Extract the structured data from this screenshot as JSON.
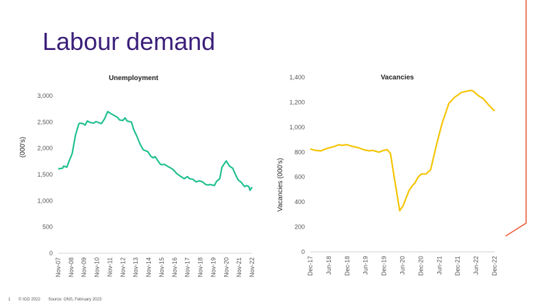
{
  "slide": {
    "title": "Labour demand",
    "page_number": "1",
    "copyright": "© IGD 2022",
    "source": "Source: ONS, February 2023",
    "accent_color": "#e8552a",
    "title_color": "#3b1f7a"
  },
  "chart_data": [
    {
      "type": "line",
      "title": "Unemployment",
      "xlabel": "",
      "ylabel": "(000's)",
      "x_unit": "months since Nov-07",
      "xlim": [
        0,
        180
      ],
      "ylim": [
        0,
        3000
      ],
      "yticks": [
        "0",
        "500",
        "1,000",
        "1,500",
        "2,000",
        "2,500",
        "3,000"
      ],
      "ytick_values": [
        0,
        500,
        1000,
        1500,
        2000,
        2500,
        3000
      ],
      "xtick_labels": [
        "Nov-07",
        "Nov-08",
        "Nov-09",
        "Nov-10",
        "Nov-11",
        "Nov-12",
        "Nov-13",
        "Nov-14",
        "Nov-15",
        "Nov-16",
        "Nov-17",
        "Nov-18",
        "Nov-19",
        "Nov-20",
        "Nov-21",
        "Nov-22"
      ],
      "color": "#1fbf8f",
      "x": [
        0,
        4,
        5,
        8,
        10,
        13,
        16,
        19,
        20,
        23,
        25,
        27,
        30,
        33,
        35,
        40,
        43,
        46,
        49,
        55,
        57,
        60,
        62,
        64,
        68,
        70,
        73,
        76,
        79,
        83,
        86,
        88,
        90,
        92,
        95,
        99,
        102,
        104,
        107,
        110,
        114,
        117,
        120,
        122,
        125,
        128,
        131,
        134,
        137,
        139,
        141,
        145,
        147,
        150,
        152,
        156,
        159,
        162,
        165,
        167,
        170,
        173,
        175,
        177,
        178,
        180
      ],
      "values": [
        1610,
        1620,
        1660,
        1640,
        1750,
        1900,
        2250,
        2460,
        2480,
        2470,
        2440,
        2520,
        2490,
        2480,
        2510,
        2470,
        2560,
        2700,
        2660,
        2590,
        2540,
        2530,
        2580,
        2520,
        2500,
        2360,
        2230,
        2080,
        1970,
        1940,
        1850,
        1820,
        1840,
        1780,
        1690,
        1690,
        1650,
        1630,
        1590,
        1520,
        1460,
        1420,
        1460,
        1420,
        1410,
        1360,
        1380,
        1360,
        1310,
        1300,
        1310,
        1290,
        1370,
        1420,
        1640,
        1760,
        1660,
        1620,
        1480,
        1400,
        1350,
        1270,
        1290,
        1270,
        1200,
        1260
      ]
    },
    {
      "type": "line",
      "title": "Vacancies",
      "xlabel": "",
      "ylabel": "Vacancies (000's)",
      "x_unit": "months since Dec-17",
      "xlim": [
        0,
        60
      ],
      "ylim": [
        0,
        1400
      ],
      "yticks": [
        "0",
        "200",
        "400",
        "600",
        "800",
        "1,000",
        "1,200",
        "1,400"
      ],
      "ytick_values": [
        0,
        200,
        400,
        600,
        800,
        1000,
        1200,
        1400
      ],
      "xtick_labels": [
        "Dec-17",
        "Jun-18",
        "Dec-18",
        "Jun-19",
        "Dec-19",
        "Jun-20",
        "Dec-20",
        "Jun-21",
        "Dec-21",
        "Jun-22",
        "Dec-22"
      ],
      "color": "#f5c400",
      "x": [
        0,
        1.5,
        3.4,
        5.2,
        7.8,
        9.3,
        10.4,
        11.9,
        13.4,
        15.7,
        17.5,
        19.4,
        20.1,
        22.4,
        23.9,
        25,
        26.1,
        27.2,
        29.1,
        30.2,
        32.1,
        33.2,
        34,
        35.1,
        36.2,
        37.7,
        39.2,
        41,
        42.9,
        45.1,
        47,
        49.3,
        52.2,
        53,
        54.9,
        56.3,
        58.2,
        60
      ],
      "values": [
        825,
        815,
        810,
        828,
        845,
        860,
        855,
        860,
        848,
        835,
        818,
        810,
        815,
        800,
        815,
        820,
        790,
        620,
        330,
        370,
        490,
        530,
        550,
        600,
        625,
        625,
        660,
        850,
        1030,
        1190,
        1240,
        1280,
        1295,
        1290,
        1250,
        1230,
        1175,
        1130
      ]
    }
  ]
}
